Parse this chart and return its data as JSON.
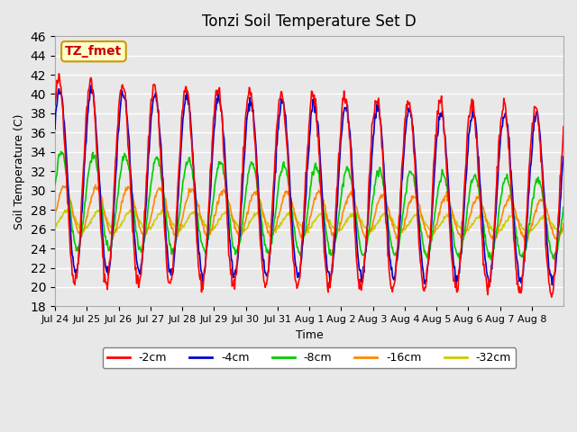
{
  "title": "Tonzi Soil Temperature Set D",
  "xlabel": "Time",
  "ylabel": "Soil Temperature (C)",
  "ylim": [
    18,
    46
  ],
  "yticks": [
    18,
    20,
    22,
    24,
    26,
    28,
    30,
    32,
    34,
    36,
    38,
    40,
    42,
    44,
    46
  ],
  "annotation_text": "TZ_fmet",
  "annotation_color": "#cc0000",
  "annotation_bg": "#ffffcc",
  "annotation_border": "#cc9900",
  "series_colors": {
    "-2cm": "#ff0000",
    "-4cm": "#0000cc",
    "-8cm": "#00cc00",
    "-16cm": "#ff8800",
    "-32cm": "#cccc00"
  },
  "series_linewidth": 1.2,
  "background_color": "#e8e8e8",
  "grid_color": "#ffffff",
  "n_days": 16,
  "x_tick_labels": [
    "Jul 24",
    "Jul 25",
    "Jul 26",
    "Jul 27",
    "Jul 28",
    "Jul 29",
    "Jul 30",
    "Jul 31",
    "Aug 1",
    "Aug 2",
    "Aug 3",
    "Aug 4",
    "Aug 5",
    "Aug 6",
    "Aug 7",
    "Aug 8"
  ],
  "points_per_day": 48
}
